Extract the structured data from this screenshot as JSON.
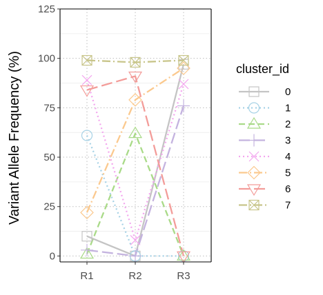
{
  "chart_data": {
    "type": "line",
    "ylabel": "Variant Allele Frequency (%)",
    "xlabel": "",
    "categories": [
      "R1",
      "R2",
      "R3"
    ],
    "ylim": [
      -3,
      125
    ],
    "yticks": [
      0,
      25,
      50,
      75,
      100,
      125
    ],
    "grid": true,
    "legend": {
      "title": "cluster_id",
      "position": "right"
    },
    "series": [
      {
        "name": "0",
        "values": [
          10,
          0,
          97
        ],
        "color": "#c4c4c4",
        "dash": "solid",
        "marker": "square"
      },
      {
        "name": "1",
        "values": [
          61,
          0,
          0
        ],
        "color": "#a6d2e6",
        "dash": "dotted",
        "marker": "circle"
      },
      {
        "name": "2",
        "values": [
          1,
          62,
          0
        ],
        "color": "#a9da88",
        "dash": "dashed",
        "marker": "triangle"
      },
      {
        "name": "3",
        "values": [
          3,
          0,
          76
        ],
        "color": "#c4b3df",
        "dash": "longdash",
        "marker": "plus"
      },
      {
        "name": "4",
        "values": [
          89,
          8,
          87
        ],
        "color": "#f3a6ee",
        "dash": "dotted",
        "marker": "x"
      },
      {
        "name": "5",
        "values": [
          22,
          79,
          95
        ],
        "color": "#fbc98e",
        "dash": "dashdot",
        "marker": "diamond"
      },
      {
        "name": "6",
        "values": [
          84,
          91,
          0
        ],
        "color": "#f39c99",
        "dash": "longdash",
        "marker": "triangle-down"
      },
      {
        "name": "7",
        "values": [
          99,
          98,
          99
        ],
        "color": "#c8c58a",
        "dash": "dashdot",
        "marker": "square-x"
      }
    ]
  }
}
